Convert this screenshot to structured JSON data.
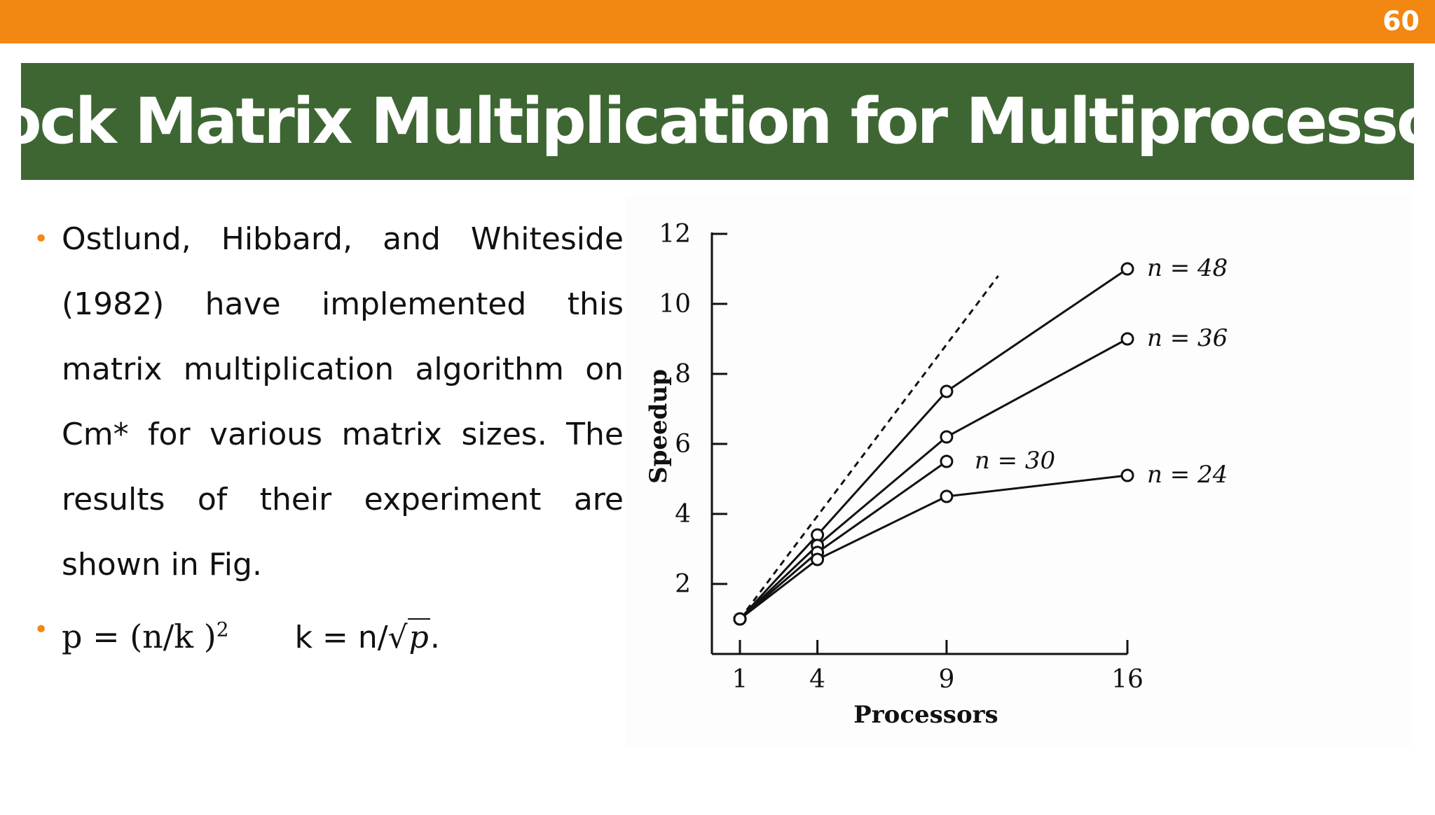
{
  "slide": {
    "number": "60",
    "title": "Block Matrix Multiplication for Multiprocessors",
    "paragraph": "Ostlund, Hibbard, and Whiteside (1982) have implemented this matrix multiplication algorithm on Cm* for various matrix sizes. The results of their experiment are shown in Fig.",
    "formula1_lhs": "p = (n/k )",
    "formula1_exp": "2",
    "formula2_lhs": "k = n/",
    "formula2_rad": "√",
    "formula2_var": "p",
    "formula2_end": "."
  },
  "colors": {
    "top_bar": "#f28712",
    "title_bar": "#3e6633",
    "bullet": "#f28712"
  },
  "chart_data": {
    "type": "line",
    "xlabel": "Processors",
    "ylabel": "Speedup",
    "x_ticks": [
      1,
      4,
      9,
      16
    ],
    "y_ticks": [
      2,
      4,
      6,
      8,
      10,
      12
    ],
    "xlim": [
      0,
      16
    ],
    "ylim": [
      0,
      12
    ],
    "grid": false,
    "legend": "inline labels at line ends",
    "series": [
      {
        "name": "n = 48",
        "x": [
          1,
          4,
          9,
          16
        ],
        "y": [
          1.0,
          3.4,
          7.5,
          11.0
        ]
      },
      {
        "name": "n = 36",
        "x": [
          1,
          4,
          9,
          16
        ],
        "y": [
          1.0,
          3.1,
          6.2,
          9.0
        ]
      },
      {
        "name": "n = 30",
        "x": [
          1,
          4,
          9
        ],
        "y": [
          1.0,
          2.9,
          5.5
        ]
      },
      {
        "name": "n = 24",
        "x": [
          1,
          4,
          9,
          16
        ],
        "y": [
          1.0,
          2.7,
          4.5,
          5.1
        ]
      }
    ],
    "reference_line": {
      "style": "dashed",
      "x": [
        1,
        11
      ],
      "y": [
        1,
        11
      ]
    }
  }
}
